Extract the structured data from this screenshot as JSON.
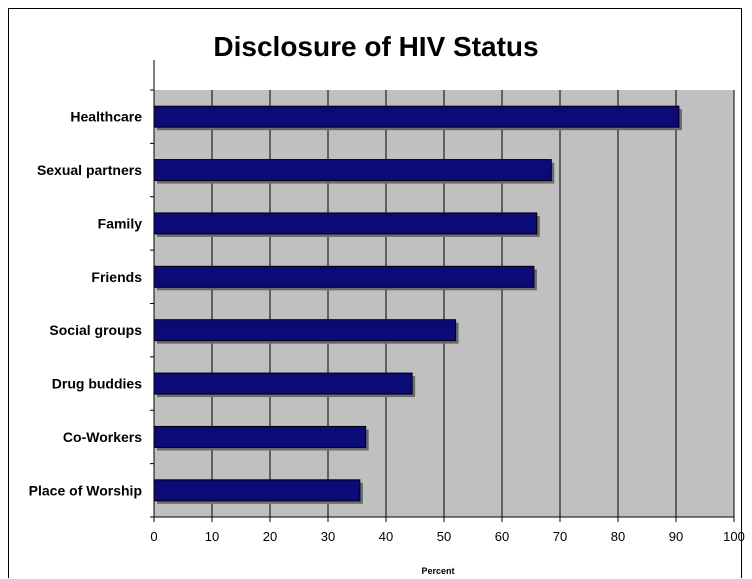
{
  "chart_data": {
    "type": "bar",
    "orientation": "horizontal",
    "title": "Disclosure of HIV Status",
    "xlabel": "Percent",
    "ylabel": "",
    "categories": [
      "Healthcare",
      "Sexual partners",
      "Family",
      "Friends",
      "Social groups",
      "Drug buddies",
      "Co-Workers",
      "Place of Worship"
    ],
    "values": [
      90.5,
      68.5,
      66,
      65.5,
      52,
      44.5,
      36.5,
      35.5
    ],
    "xlim": [
      0,
      100
    ],
    "xticks": [
      "0",
      "10",
      "20",
      "30",
      "40",
      "50",
      "60",
      "70",
      "80",
      "90",
      "100"
    ],
    "grid": true,
    "legend": "none",
    "colors": {
      "bar": "#0a0a78",
      "bar_edge": "#000000",
      "bar_shadow": "#6a6a6a",
      "plot_background": "#c0c0c0",
      "gridline": "#000000"
    }
  }
}
